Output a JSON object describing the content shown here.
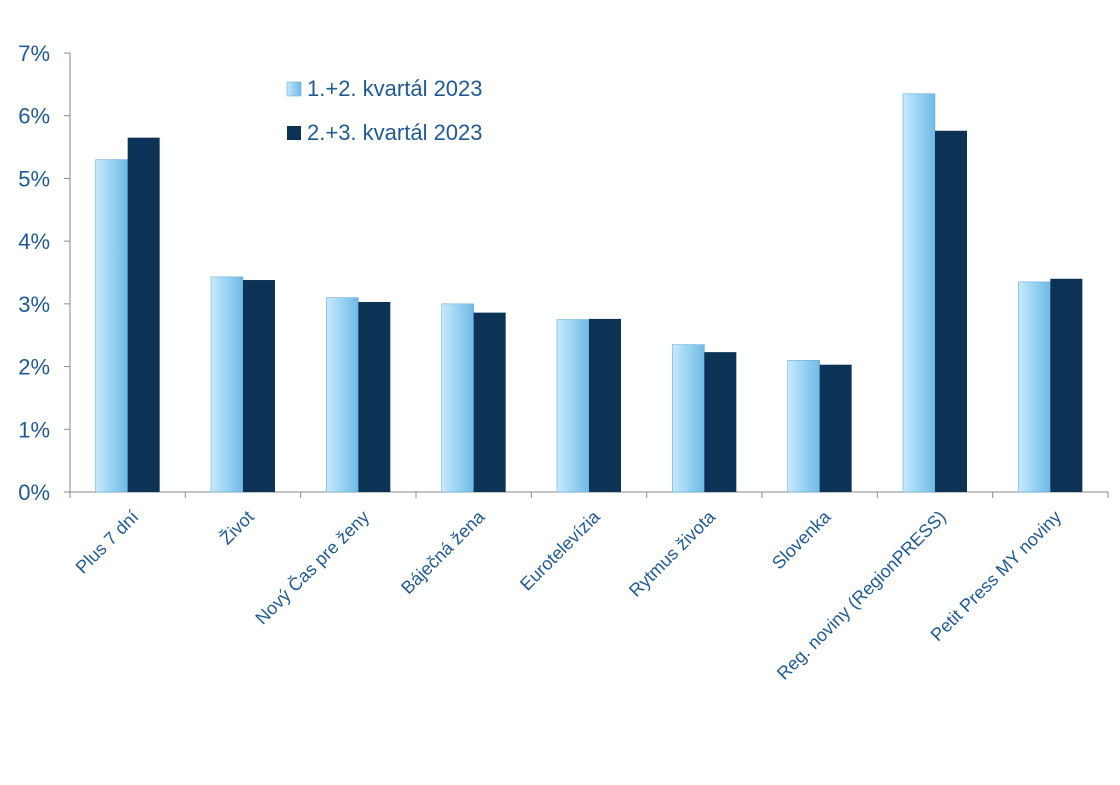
{
  "chart_data": {
    "type": "bar",
    "categories": [
      "Plus 7 dní",
      "Život",
      "Nový Čas pre ženy",
      "Báječná žena",
      "Eurotelevízia",
      "Rytmus života",
      "Slovenka",
      "Reg. noviny (RegionPRESS)",
      "Petit Press MY noviny"
    ],
    "series": [
      {
        "name": "1.+2. kvartál 2023",
        "values": [
          5.3,
          3.43,
          3.1,
          3.0,
          2.75,
          2.35,
          2.1,
          6.35,
          3.35
        ],
        "color": "#9dd3f3"
      },
      {
        "name": "2.+3. kvartál 2023",
        "values": [
          5.65,
          3.38,
          3.03,
          2.86,
          2.76,
          2.23,
          2.03,
          5.76,
          3.4
        ],
        "color": "#0c3355"
      }
    ],
    "y_ticks": [
      "0%",
      "1%",
      "2%",
      "3%",
      "4%",
      "5%",
      "6%",
      "7%"
    ],
    "ylim": [
      0,
      7
    ],
    "y_unit": "%",
    "grid": false,
    "legend_position": "top-center",
    "text_color": "#1f5a96",
    "axis_color": "#8a8a8a"
  }
}
